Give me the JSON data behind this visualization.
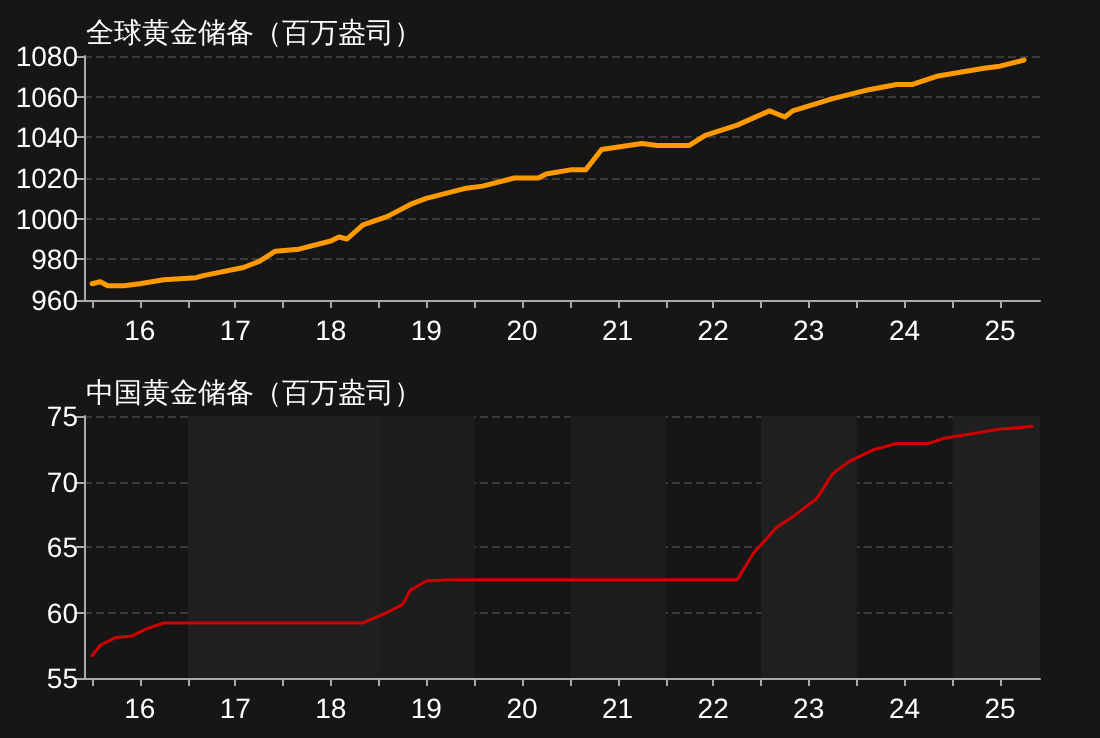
{
  "chart_data": [
    {
      "type": "line",
      "title": "全球黄金储备（百万盎司）",
      "x": [
        "2016-01",
        "2016-02",
        "2016-03",
        "2016-05",
        "2016-07",
        "2016-10",
        "2017-02",
        "2017-03",
        "2017-08",
        "2017-10",
        "2017-12",
        "2018-03",
        "2018-07",
        "2018-08",
        "2018-09",
        "2018-11",
        "2019-02",
        "2019-05",
        "2019-07",
        "2019-12",
        "2020-02",
        "2020-06",
        "2020-09",
        "2020-10",
        "2021-01",
        "2021-03",
        "2021-05",
        "2021-10",
        "2021-12",
        "2022-04",
        "2022-06",
        "2022-10",
        "2023-02",
        "2023-04",
        "2023-05",
        "2023-10",
        "2024-02",
        "2024-06",
        "2024-08",
        "2024-11",
        "2025-05",
        "2025-07",
        "2025-10"
      ],
      "series": [
        {
          "color": "#ff9900",
          "values": [
            968,
            969,
            967,
            967,
            968,
            970,
            971,
            972,
            976,
            979,
            984,
            985,
            989,
            991,
            990,
            997,
            1001,
            1007,
            1010,
            1015,
            1016,
            1020,
            1020,
            1022,
            1024,
            1024,
            1034,
            1037,
            1036,
            1036,
            1041,
            1046,
            1053,
            1050,
            1053,
            1059,
            1063,
            1066,
            1066,
            1070,
            1074,
            1075,
            1078
          ]
        }
      ],
      "xlim": [
        "2015-12",
        "2025-12"
      ],
      "xticks": [
        {
          "value": "2016-01",
          "label": null
        },
        {
          "value": "2016-07",
          "label": "16"
        },
        {
          "value": "2017-01",
          "label": null
        },
        {
          "value": "2017-07",
          "label": "17"
        },
        {
          "value": "2018-01",
          "label": null
        },
        {
          "value": "2018-07",
          "label": "18"
        },
        {
          "value": "2019-01",
          "label": null
        },
        {
          "value": "2019-07",
          "label": "19"
        },
        {
          "value": "2020-01",
          "label": null
        },
        {
          "value": "2020-07",
          "label": "20"
        },
        {
          "value": "2021-01",
          "label": null
        },
        {
          "value": "2021-07",
          "label": "21"
        },
        {
          "value": "2022-01",
          "label": null
        },
        {
          "value": "2022-07",
          "label": "22"
        },
        {
          "value": "2023-01",
          "label": null
        },
        {
          "value": "2023-07",
          "label": "23"
        },
        {
          "value": "2024-01",
          "label": null
        },
        {
          "value": "2024-07",
          "label": "24"
        },
        {
          "value": "2025-01",
          "label": null
        },
        {
          "value": "2025-07",
          "label": "25"
        }
      ],
      "ylim": [
        960,
        1080
      ],
      "yticks": [
        960,
        980,
        1000,
        1020,
        1040,
        1060,
        1080
      ],
      "grid": "y",
      "marker": "none",
      "line_style": "solid"
    },
    {
      "type": "line",
      "title": "中国黄金储备（百万盎司）",
      "x": [
        "2016-01",
        "2016-02",
        "2016-04",
        "2016-06",
        "2016-08",
        "2016-10",
        "2017-01",
        "2018-11",
        "2019-02",
        "2019-04",
        "2019-05",
        "2019-07",
        "2019-10",
        "2022-10",
        "2022-12",
        "2023-03",
        "2023-05",
        "2023-08",
        "2023-10",
        "2023-12",
        "2024-03",
        "2024-06",
        "2024-10",
        "2024-12",
        "2025-04",
        "2025-07",
        "2025-11"
      ],
      "series": [
        {
          "color": "#d00000",
          "values": [
            56.7,
            57.5,
            58.1,
            58.2,
            58.8,
            59.2,
            59.2,
            59.2,
            60.0,
            60.6,
            61.7,
            62.4,
            62.5,
            62.5,
            64.5,
            66.5,
            67.3,
            68.7,
            70.6,
            71.5,
            72.4,
            72.9,
            72.9,
            73.3,
            73.7,
            74.0,
            74.2
          ]
        }
      ],
      "xlim": [
        "2015-12",
        "2025-12"
      ],
      "xticks": [
        {
          "value": "2016-01",
          "label": null
        },
        {
          "value": "2016-07",
          "label": "16"
        },
        {
          "value": "2017-01",
          "label": null
        },
        {
          "value": "2017-07",
          "label": "17"
        },
        {
          "value": "2018-01",
          "label": null
        },
        {
          "value": "2018-07",
          "label": "18"
        },
        {
          "value": "2019-01",
          "label": null
        },
        {
          "value": "2019-07",
          "label": "19"
        },
        {
          "value": "2020-01",
          "label": null
        },
        {
          "value": "2020-07",
          "label": "20"
        },
        {
          "value": "2021-01",
          "label": null
        },
        {
          "value": "2021-07",
          "label": "21"
        },
        {
          "value": "2022-01",
          "label": null
        },
        {
          "value": "2022-07",
          "label": "22"
        },
        {
          "value": "2023-01",
          "label": null
        },
        {
          "value": "2023-07",
          "label": "23"
        },
        {
          "value": "2024-01",
          "label": null
        },
        {
          "value": "2024-07",
          "label": "24"
        },
        {
          "value": "2025-01",
          "label": null
        },
        {
          "value": "2025-07",
          "label": "25"
        }
      ],
      "ylim": [
        55,
        75
      ],
      "yticks": [
        55,
        60,
        65,
        70,
        75
      ],
      "grid": "y",
      "marker": "none",
      "line_style": "solid",
      "bands": [
        {
          "axis": "x",
          "from": "2017-01",
          "to": "2019-01",
          "color": "#202020"
        },
        {
          "axis": "x",
          "from": "2019-01",
          "to": "2020-01",
          "color": "#1d1d1d"
        },
        {
          "axis": "x",
          "from": "2021-01",
          "to": "2022-01",
          "color": "#1d1d1d"
        },
        {
          "axis": "x",
          "from": "2023-01",
          "to": "2024-01",
          "color": "#202020"
        },
        {
          "axis": "x",
          "from": "2025-01",
          "to": "2025-12",
          "color": "#202020"
        }
      ]
    }
  ]
}
